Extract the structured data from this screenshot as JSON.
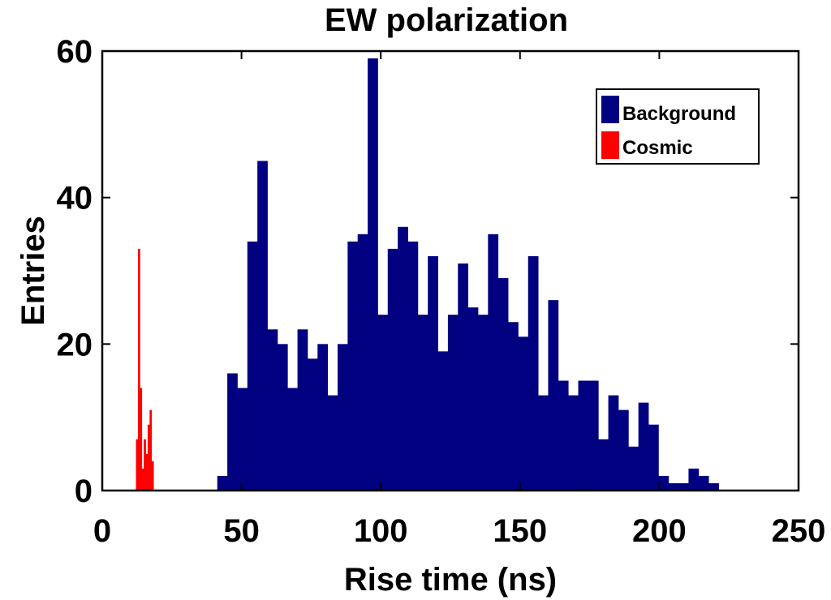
{
  "chart_data": {
    "type": "bar",
    "title": "EW polarization",
    "xlabel": "Rise time (ns)",
    "ylabel": "Entries",
    "xlim": [
      0,
      250
    ],
    "ylim": [
      0,
      60
    ],
    "xticks": [
      0,
      50,
      100,
      150,
      200,
      250
    ],
    "yticks": [
      0,
      20,
      40,
      60
    ],
    "grid": false,
    "legend_position": "top-right",
    "series": [
      {
        "name": "Background",
        "color": "#000080",
        "bin_width": 3.6,
        "bin_starts": [
          41.3,
          44.9,
          48.5,
          52.1,
          55.7,
          59.3,
          62.9,
          66.5,
          70.1,
          73.7,
          77.3,
          80.9,
          84.5,
          88.1,
          91.7,
          95.3,
          98.9,
          102.5,
          106.1,
          109.7,
          113.3,
          116.9,
          120.5,
          124.1,
          127.7,
          131.3,
          134.9,
          138.5,
          142.1,
          145.7,
          149.3,
          152.9,
          156.5,
          160.1,
          163.7,
          167.3,
          170.9,
          174.5,
          178.1,
          181.7,
          185.3,
          188.9,
          192.5,
          196.1,
          199.7,
          203.3,
          206.9,
          210.5,
          214.1,
          217.7,
          221.3
        ],
        "values": [
          2,
          16,
          14,
          34,
          45,
          22,
          20,
          14,
          22,
          18,
          20,
          13,
          20,
          34,
          35,
          59,
          24,
          33,
          36,
          34,
          24,
          32,
          19,
          24,
          31,
          25,
          24,
          35,
          29,
          23,
          21,
          32,
          13,
          26,
          15,
          13,
          15,
          15,
          7,
          13,
          11,
          6,
          12,
          9,
          2,
          1,
          1,
          3,
          2,
          1,
          0
        ]
      },
      {
        "name": "Cosmic",
        "color": "#ff0000",
        "bin_width": 0.7,
        "bin_starts": [
          12.1,
          12.8,
          13.5,
          14.2,
          14.9,
          15.6,
          16.3,
          17.0,
          17.7,
          18.4
        ],
        "values": [
          7,
          33,
          14,
          3,
          7,
          5,
          9,
          11,
          4,
          0
        ]
      }
    ]
  }
}
